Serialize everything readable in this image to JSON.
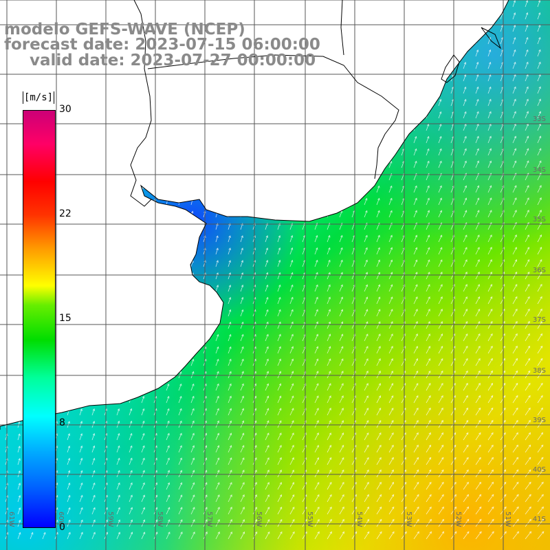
{
  "title_lines": [
    "modelo GEFS-WAVE (NCEP)",
    "forecast date: 2023-07-15 06:00:00",
    "valid date: 2023-07-27 00:00:00"
  ],
  "colorbar": {
    "unit": "[m/s]",
    "ticks": [
      "30",
      "22",
      "15",
      "8",
      "0"
    ],
    "colors": [
      "#0000ff",
      "#00ffff",
      "#00dd00",
      "#ffff00",
      "#ff0000",
      "#cc0077"
    ]
  },
  "lon_labels": [
    "61W",
    "60W",
    "59W",
    "58W",
    "57W",
    "56W",
    "55W",
    "54W",
    "53W",
    "52W",
    "51W"
  ],
  "lat_labels": [
    "33S",
    "34S",
    "35S",
    "36S",
    "37S",
    "38S",
    "39S",
    "40S",
    "41S"
  ],
  "wind_field_range_ms": [
    4,
    17
  ],
  "land_color": "#ffffff",
  "grid_color": "#555555",
  "coast_color": "#000000"
}
